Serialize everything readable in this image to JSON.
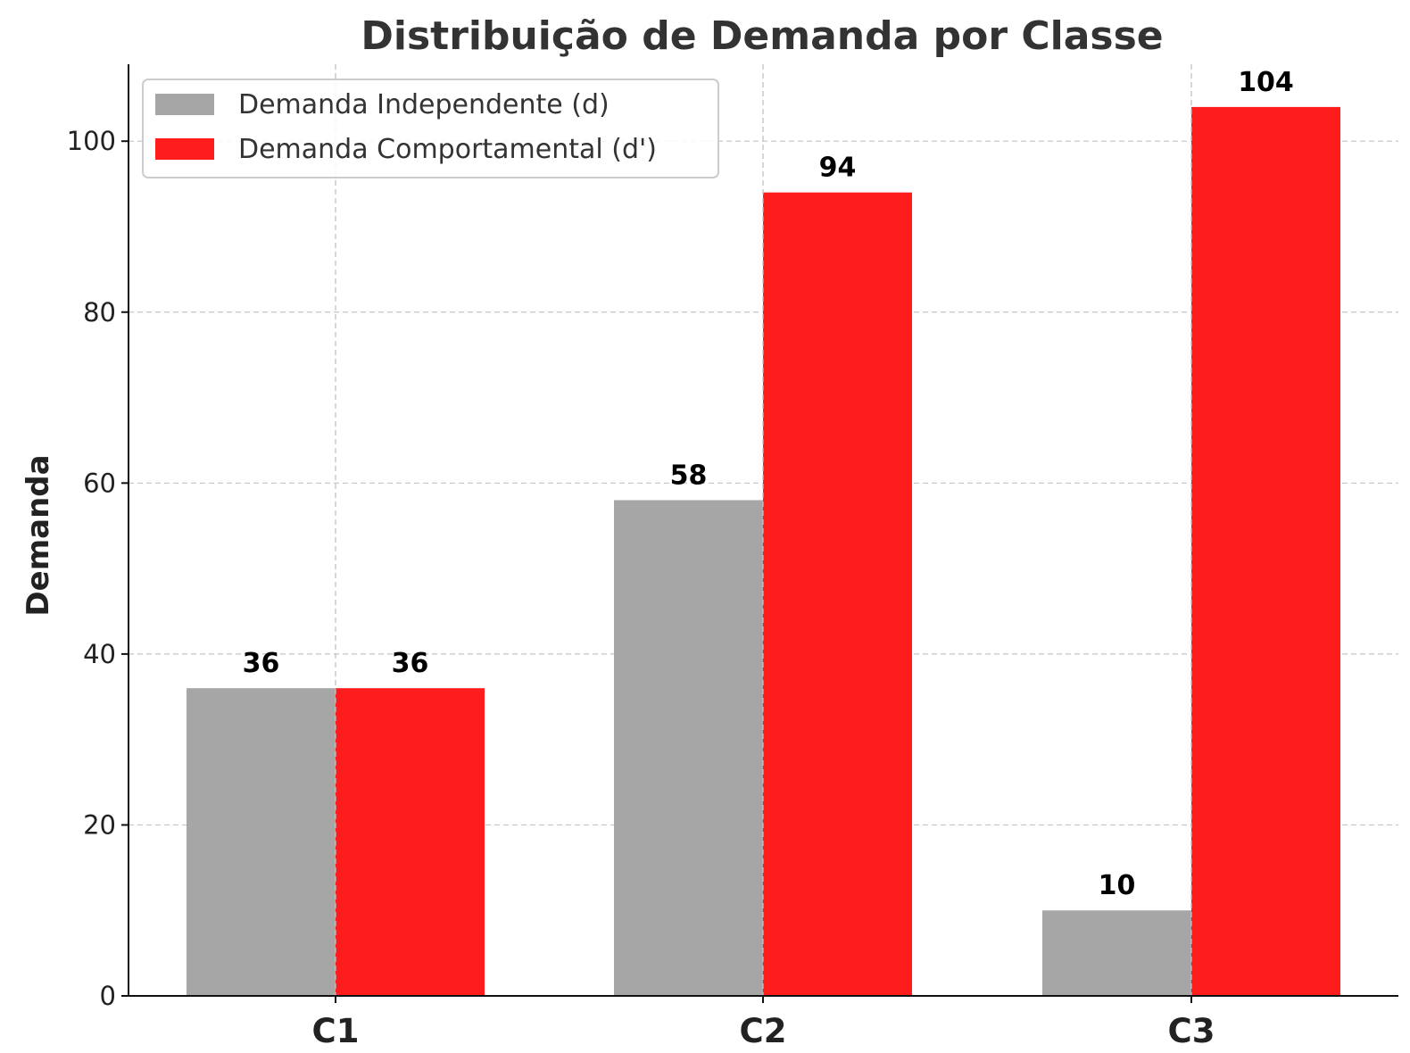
{
  "chart_data": {
    "type": "bar",
    "title": "Distribuição de Demanda por Classe",
    "xlabel": "",
    "ylabel": "Demanda",
    "categories": [
      "C1",
      "C2",
      "C3"
    ],
    "ylim": [
      0,
      109
    ],
    "yticks": [
      0,
      20,
      40,
      60,
      80,
      100
    ],
    "grid": true,
    "legend_position": "top-left",
    "series": [
      {
        "name": "Demanda Independente (d)",
        "values": [
          36,
          58,
          10
        ],
        "color": "#a6a6a6"
      },
      {
        "name": "Demanda Comportamental (d')",
        "values": [
          36,
          94,
          104
        ],
        "color": "#ff1c1c"
      }
    ]
  }
}
